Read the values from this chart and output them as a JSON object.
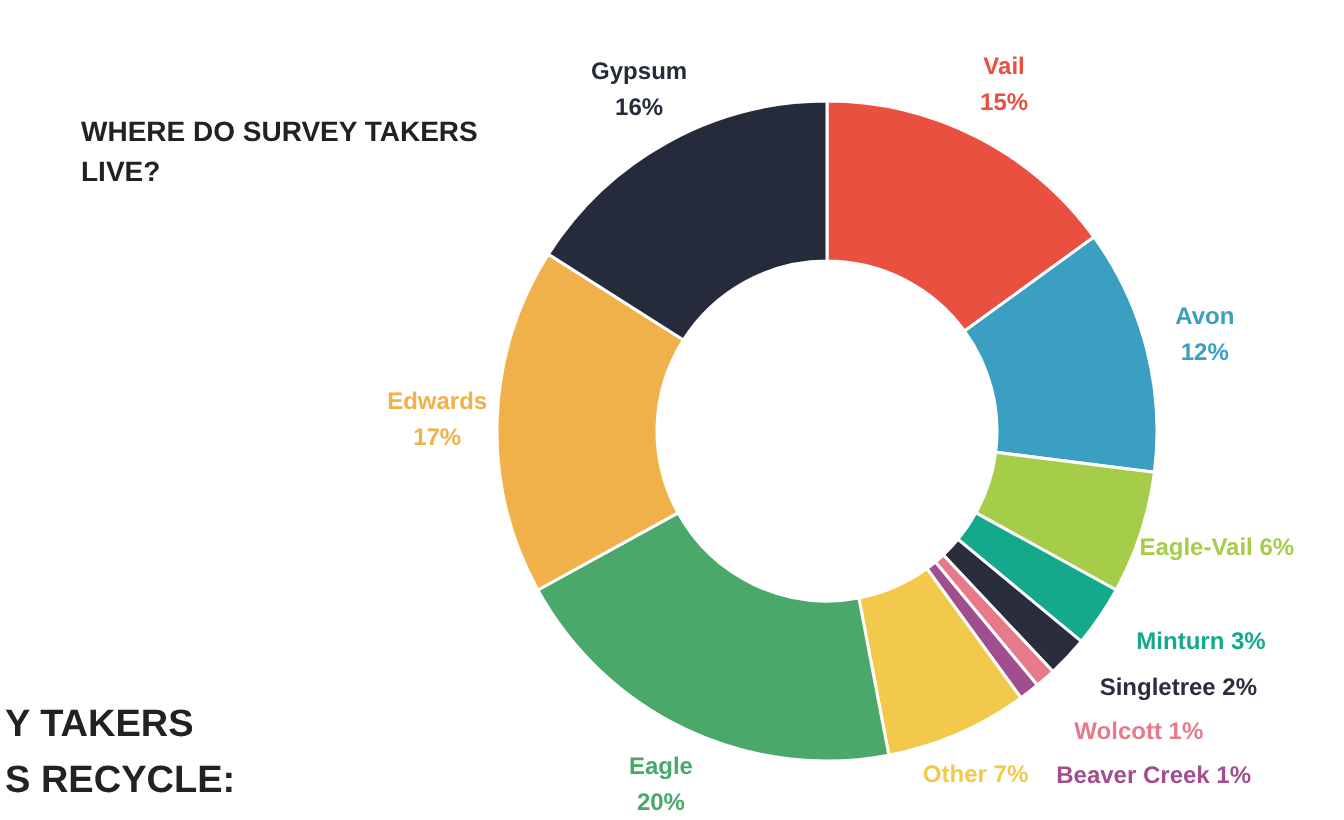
{
  "chart_data": {
    "type": "donut",
    "title": "WHERE DO SURVEY TAKERS LIVE?",
    "categories": [
      "Vail",
      "Avon",
      "Eagle-Vail",
      "Minturn",
      "Singletree",
      "Wolcott",
      "Beaver Creek",
      "Other",
      "Eagle",
      "Edwards",
      "Gypsum"
    ],
    "values": [
      15,
      12,
      6,
      3,
      2,
      1,
      1,
      7,
      20,
      17,
      16
    ],
    "value_labels": [
      "15%",
      "12%",
      "6%",
      "3%",
      "2%",
      "1%",
      "1%",
      "7%",
      "20%",
      "17%",
      "16%"
    ],
    "colors": [
      "#e9503f",
      "#3a9fc0",
      "#a6cd4a",
      "#14a98c",
      "#2a2d3b",
      "#e77a8a",
      "#a04e8d",
      "#f2c94a",
      "#4aa86a",
      "#f0b14a",
      "#252b3a"
    ],
    "annotations": [
      "Y TAKERS",
      "S RECYCLE:"
    ]
  }
}
